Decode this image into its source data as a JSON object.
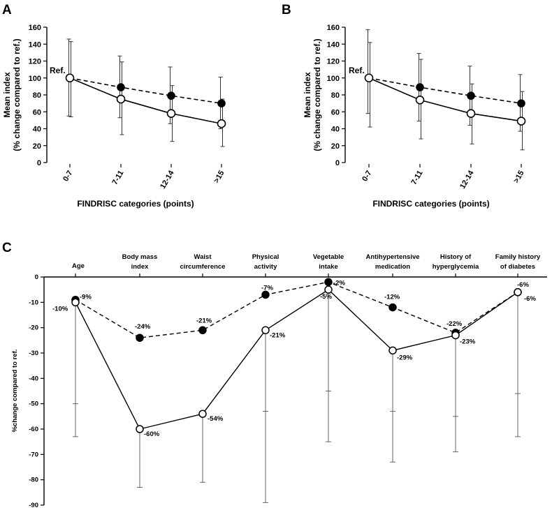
{
  "chart_data": [
    {
      "panel": "A",
      "type": "line",
      "xlabel": "FINDRISC categories (points)",
      "ylabel_line1": "Mean index",
      "ylabel_line2": "(% change compared to ref.)",
      "ylim": [
        0,
        160
      ],
      "yticks": [
        0,
        20,
        40,
        60,
        80,
        100,
        120,
        140,
        160
      ],
      "categories": [
        "0-7",
        "7-11",
        "12-14",
        ">15"
      ],
      "ref_label": "Ref.",
      "series": [
        {
          "name": "filled",
          "style": "dashed",
          "marker": "filled",
          "values": [
            100,
            89,
            79,
            70
          ],
          "err_low": [
            55,
            53,
            46,
            40
          ],
          "err_high": [
            146,
            126,
            113,
            101
          ]
        },
        {
          "name": "open",
          "style": "solid",
          "marker": "open",
          "values": [
            100,
            75,
            58,
            46
          ],
          "err_low": [
            54,
            33,
            25,
            19
          ],
          "err_high": [
            143,
            119,
            91,
            75
          ]
        }
      ]
    },
    {
      "panel": "B",
      "type": "line",
      "xlabel": "FINDRISC categories (points)",
      "ylabel_line1": "Mean index",
      "ylabel_line2": "(% change compared to ref.)",
      "ylim": [
        0,
        160
      ],
      "yticks": [
        0,
        20,
        40,
        60,
        80,
        100,
        120,
        140,
        160
      ],
      "categories": [
        "0-7",
        "7-11",
        "12-14",
        ">15"
      ],
      "ref_label": "Ref.",
      "series": [
        {
          "name": "filled",
          "style": "dashed",
          "marker": "filled",
          "values": [
            100,
            89,
            79,
            70
          ],
          "err_low": [
            58,
            49,
            44,
            37
          ],
          "err_high": [
            157,
            129,
            114,
            104
          ]
        },
        {
          "name": "open",
          "style": "solid",
          "marker": "open",
          "values": [
            100,
            74,
            58,
            49
          ],
          "err_low": [
            42,
            28,
            22,
            15
          ],
          "err_high": [
            142,
            122,
            93,
            84
          ]
        }
      ]
    },
    {
      "panel": "C",
      "type": "line",
      "ylabel": "%change compared to ref.",
      "ylim": [
        -90,
        0
      ],
      "yticks": [
        0,
        -10,
        -20,
        -30,
        -40,
        -50,
        -60,
        -70,
        -80,
        -90
      ],
      "categories": [
        [
          "Age"
        ],
        [
          "Body mass",
          "index"
        ],
        [
          "Waist",
          "circumference"
        ],
        [
          "Physical",
          "activity"
        ],
        [
          "Vegetable",
          "intake"
        ],
        [
          "Antihypertensive",
          "medication"
        ],
        [
          "History of",
          "hyperglycemia"
        ],
        [
          "Family history",
          "of diabetes"
        ]
      ],
      "series": [
        {
          "name": "filled",
          "style": "dashed",
          "marker": "filled",
          "values": [
            -9,
            -24,
            -21,
            -7,
            -2,
            -12,
            -22,
            -6
          ],
          "labels": [
            "-9%",
            "-24%",
            "-21%",
            "-7%",
            "-2%",
            "-12%",
            "-22%",
            "-6%"
          ]
        },
        {
          "name": "open",
          "style": "solid",
          "marker": "open",
          "values": [
            -10,
            -60,
            -54,
            -21,
            -5,
            -29,
            -23,
            -6
          ],
          "labels": [
            "-10%",
            "-60%",
            "-54%",
            "-21%",
            "-5%",
            "-29%",
            "-23%",
            "-6%"
          ],
          "err_low": [
            -63,
            -83,
            -81,
            -89,
            -65,
            -73,
            -69,
            -63
          ],
          "err_high": [
            -50,
            null,
            null,
            -53,
            -45,
            -53,
            -55,
            -46
          ]
        }
      ]
    }
  ]
}
